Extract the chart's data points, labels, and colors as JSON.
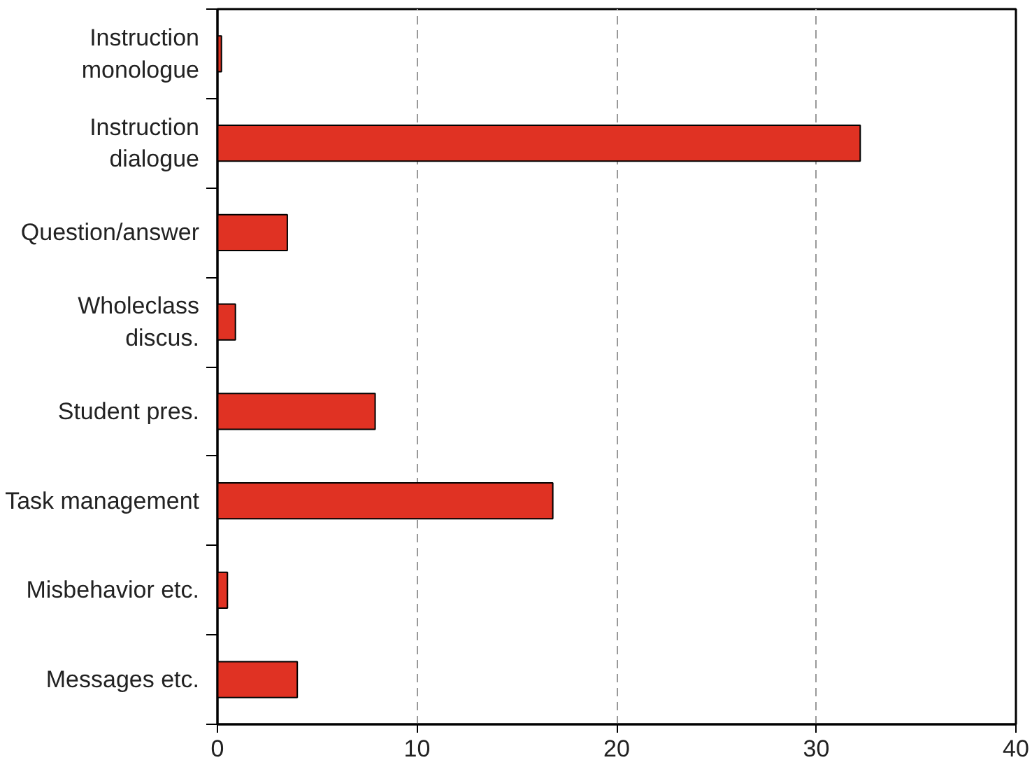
{
  "chart_data": {
    "type": "bar",
    "orientation": "horizontal",
    "categories": [
      "Instruction\nmonologue",
      "Instruction\ndialogue",
      "Question/answer",
      "Wholeclass\ndiscus.",
      "Student pres.",
      "Task management",
      "Misbehavior etc.",
      "Messages etc."
    ],
    "values": [
      0.2,
      32.2,
      3.5,
      0.9,
      7.9,
      16.8,
      0.5,
      4.0
    ],
    "color": "#e03223",
    "xlim": [
      0,
      40
    ],
    "xticks": [
      0,
      10,
      20,
      30,
      40
    ],
    "grid": "x"
  }
}
